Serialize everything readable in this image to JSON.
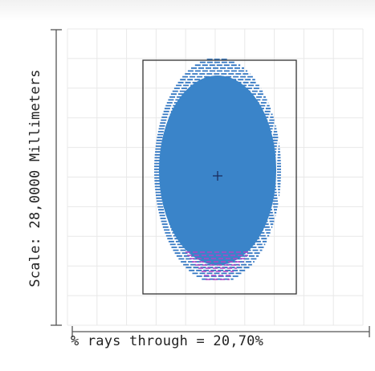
{
  "plot": {
    "y_axis_label": "Scale: 28,0000 Millimeters",
    "x_axis_label": "% rays through = 20,70%"
  },
  "colors": {
    "spot": "#3a84c9",
    "spot_dash": "#3377c2",
    "vignette": "#b445c6",
    "grid": "#e8e8e8",
    "frame": "#333333",
    "axis": "#555555"
  },
  "icons": {
    "center_marker": "plus-crosshair-icon"
  }
}
